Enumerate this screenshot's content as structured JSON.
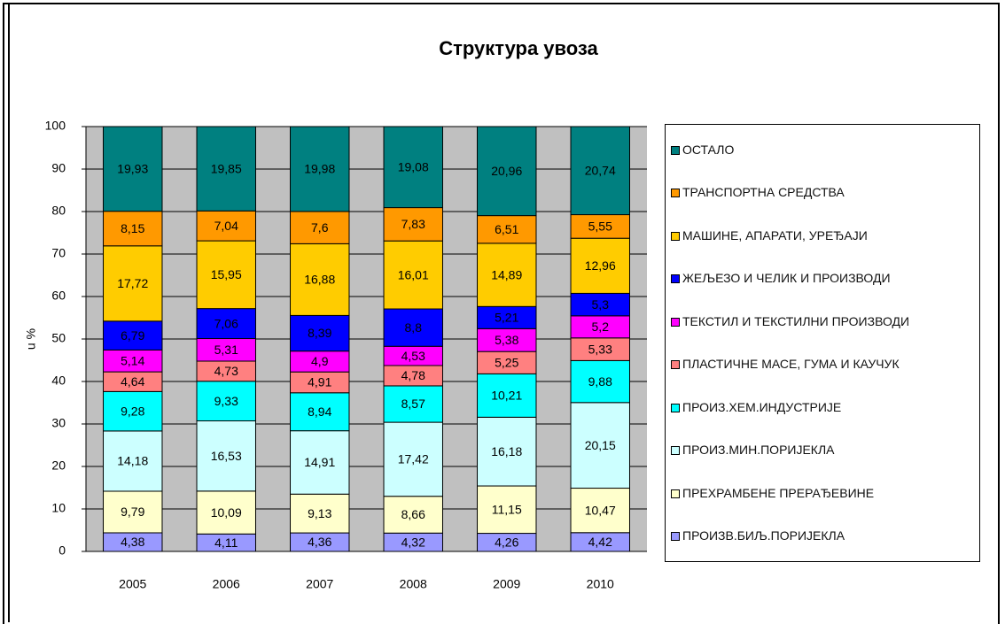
{
  "chart_data": {
    "type": "stacked_bar",
    "title": "Структура увоза",
    "y_label": "u %",
    "categories": [
      "2005",
      "2006",
      "2007",
      "2008",
      "2009",
      "2010"
    ],
    "ylim": [
      0,
      100
    ],
    "yticks": [
      0,
      10,
      20,
      30,
      40,
      50,
      60,
      70,
      80,
      90,
      100
    ],
    "grid": true,
    "legend": "right",
    "series": [
      {
        "name": "ПРОИЗВ.БИЉ.ПОРИЈЕКЛА",
        "color": "#9999ff",
        "values": [
          4.38,
          4.11,
          4.36,
          4.32,
          4.26,
          4.42
        ],
        "value_labels": [
          "4,38",
          "4,11",
          "4,36",
          "4,32",
          "4,26",
          "4,42"
        ]
      },
      {
        "name": "ПРЕХРАМБЕНЕ ПРЕРАЂЕВИНЕ",
        "color": "#ffffcc",
        "values": [
          9.79,
          10.09,
          9.13,
          8.66,
          11.15,
          10.47
        ],
        "value_labels": [
          "9,79",
          "10,09",
          "9,13",
          "8,66",
          "11,15",
          "10,47"
        ]
      },
      {
        "name": "ПРОИЗ.МИН.ПОРИЈЕКЛА",
        "color": "#ccffff",
        "values": [
          14.18,
          16.53,
          14.91,
          17.42,
          16.18,
          20.15
        ],
        "value_labels": [
          "14,18",
          "16,53",
          "14,91",
          "17,42",
          "16,18",
          "20,15"
        ]
      },
      {
        "name": "ПРОИЗ.ХЕМ.ИНДУСТРИЈЕ",
        "color": "#00ffff",
        "values": [
          9.28,
          9.33,
          8.94,
          8.57,
          10.21,
          9.88
        ],
        "value_labels": [
          "9,28",
          "9,33",
          "8,94",
          "8,57",
          "10,21",
          "9,88"
        ]
      },
      {
        "name": "ПЛАСТИЧНЕ МАСЕ, ГУМА И КАУЧУК",
        "color": "#ff8080",
        "values": [
          4.64,
          4.73,
          4.91,
          4.78,
          5.25,
          5.33
        ],
        "value_labels": [
          "4,64",
          "4,73",
          "4,91",
          "4,78",
          "5,25",
          "5,33"
        ]
      },
      {
        "name": "ТЕКСТИЛ И ТЕКСТИЛНИ ПРОИЗВОДИ",
        "color": "#ff00ff",
        "values": [
          5.14,
          5.31,
          4.9,
          4.53,
          5.38,
          5.2
        ],
        "value_labels": [
          "5,14",
          "5,31",
          "4,9",
          "4,53",
          "5,38",
          "5,2"
        ]
      },
      {
        "name": "ЖЕЉЕЗО И ЧЕЛИК И ПРОИЗВОДИ",
        "color": "#0000ff",
        "values": [
          6.79,
          7.06,
          8.39,
          8.8,
          5.21,
          5.3
        ],
        "value_labels": [
          "6,79",
          "7,06",
          "8,39",
          "8,8",
          "5,21",
          "5,3"
        ]
      },
      {
        "name": "МАШИНЕ, АПАРАТИ, УРЕЂАЈИ",
        "color": "#ffcc00",
        "values": [
          17.72,
          15.95,
          16.88,
          16.01,
          14.89,
          12.96
        ],
        "value_labels": [
          "17,72",
          "15,95",
          "16,88",
          "16,01",
          "14,89",
          "12,96"
        ]
      },
      {
        "name": "ТРАНСПОРТНА СРЕДСТВА",
        "color": "#ff9900",
        "values": [
          8.15,
          7.04,
          7.6,
          7.83,
          6.51,
          5.55
        ],
        "value_labels": [
          "8,15",
          "7,04",
          "7,6",
          "7,83",
          "6,51",
          "5,55"
        ]
      },
      {
        "name": "ОСТАЛО",
        "color": "#008080",
        "values": [
          19.93,
          19.85,
          19.98,
          19.08,
          20.96,
          20.74
        ],
        "value_labels": [
          "19,93",
          "19,85",
          "19,98",
          "19,08",
          "20,96",
          "20,74"
        ]
      }
    ]
  }
}
